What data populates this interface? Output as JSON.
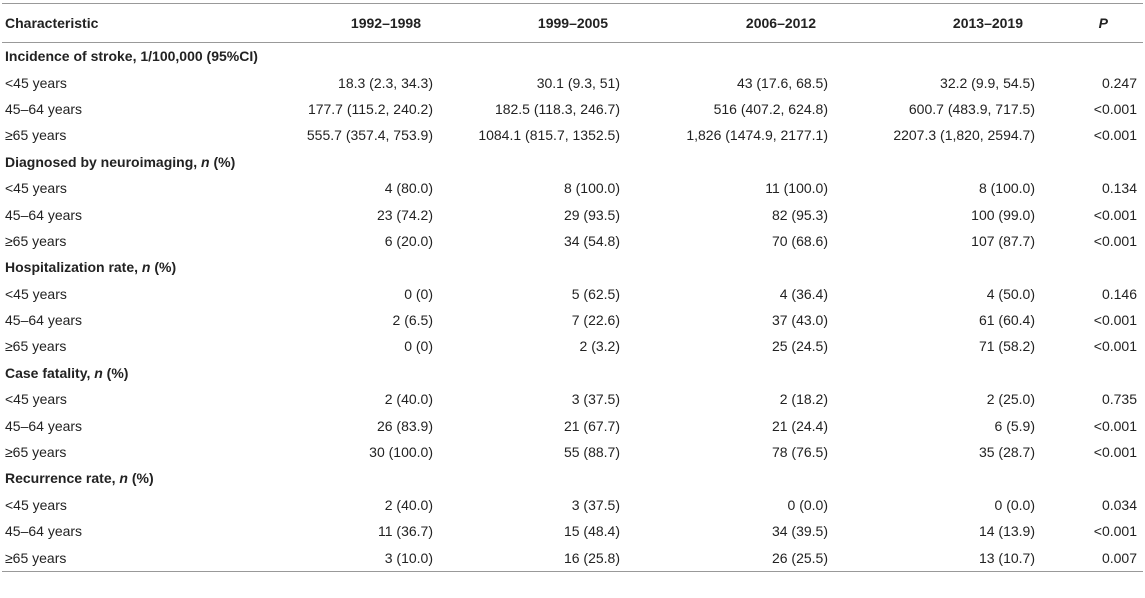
{
  "table": {
    "header": [
      "Characteristic",
      "1992–1998",
      "1999–2005",
      "2006–2012",
      "2013–2019",
      "P"
    ],
    "sections": [
      {
        "title": [
          {
            "text": "Incidence of stroke, 1/100,000 (95%CI)"
          }
        ],
        "rows": [
          [
            "<45 years",
            "18.3 (2.3, 34.3)",
            "30.1 (9.3, 51)",
            "43 (17.6, 68.5)",
            "32.2 (9.9, 54.5)",
            "0.247"
          ],
          [
            "45–64 years",
            "177.7 (115.2, 240.2)",
            "182.5 (118.3, 246.7)",
            "516 (407.2, 624.8)",
            "600.7 (483.9, 717.5)",
            "<0.001"
          ],
          [
            "≥65 years",
            "555.7 (357.4, 753.9)",
            "1084.1 (815.7, 1352.5)",
            "1,826 (1474.9, 2177.1)",
            "2207.3 (1,820, 2594.7)",
            "<0.001"
          ]
        ]
      },
      {
        "title": [
          {
            "text": "Diagnosed by neuroimaging, "
          },
          {
            "text": "n",
            "italic": true
          },
          {
            "text": " (%)"
          }
        ],
        "rows": [
          [
            "<45 years",
            "4 (80.0)",
            "8 (100.0)",
            "11 (100.0)",
            "8 (100.0)",
            "0.134"
          ],
          [
            "45–64 years",
            "23 (74.2)",
            "29 (93.5)",
            "82 (95.3)",
            "100 (99.0)",
            "<0.001"
          ],
          [
            "≥65 years",
            "6 (20.0)",
            "34 (54.8)",
            "70 (68.6)",
            "107 (87.7)",
            "<0.001"
          ]
        ]
      },
      {
        "title": [
          {
            "text": "Hospitalization rate, "
          },
          {
            "text": "n",
            "italic": true
          },
          {
            "text": " (%)"
          }
        ],
        "rows": [
          [
            "<45 years",
            "0 (0)",
            "5 (62.5)",
            "4 (36.4)",
            "4 (50.0)",
            "0.146"
          ],
          [
            "45–64 years",
            "2 (6.5)",
            "7 (22.6)",
            "37 (43.0)",
            "61 (60.4)",
            "<0.001"
          ],
          [
            "≥65 years",
            "0 (0)",
            "2 (3.2)",
            "25 (24.5)",
            "71 (58.2)",
            "<0.001"
          ]
        ]
      },
      {
        "title": [
          {
            "text": "Case fatality, "
          },
          {
            "text": "n",
            "italic": true
          },
          {
            "text": " (%)"
          }
        ],
        "rows": [
          [
            "<45 years",
            "2 (40.0)",
            "3 (37.5)",
            "2 (18.2)",
            "2 (25.0)",
            "0.735"
          ],
          [
            "45–64 years",
            "26 (83.9)",
            "21 (67.7)",
            "21 (24.4)",
            "6 (5.9)",
            "<0.001"
          ],
          [
            "≥65 years",
            "30 (100.0)",
            "55 (88.7)",
            "78 (76.5)",
            "35 (28.7)",
            "<0.001"
          ]
        ]
      },
      {
        "title": [
          {
            "text": "Recurrence rate, "
          },
          {
            "text": "n",
            "italic": true
          },
          {
            "text": " (%)"
          }
        ],
        "rows": [
          [
            "<45 years",
            "2 (40.0)",
            "3 (37.5)",
            "0 (0.0)",
            "0 (0.0)",
            "0.034"
          ],
          [
            "45–64 years",
            "11 (36.7)",
            "15 (48.4)",
            "34 (39.5)",
            "14 (13.9)",
            "<0.001"
          ],
          [
            "≥65 years",
            "3 (10.0)",
            "16 (25.8)",
            "26 (25.5)",
            "13 (10.7)",
            "0.007"
          ]
        ]
      }
    ]
  }
}
